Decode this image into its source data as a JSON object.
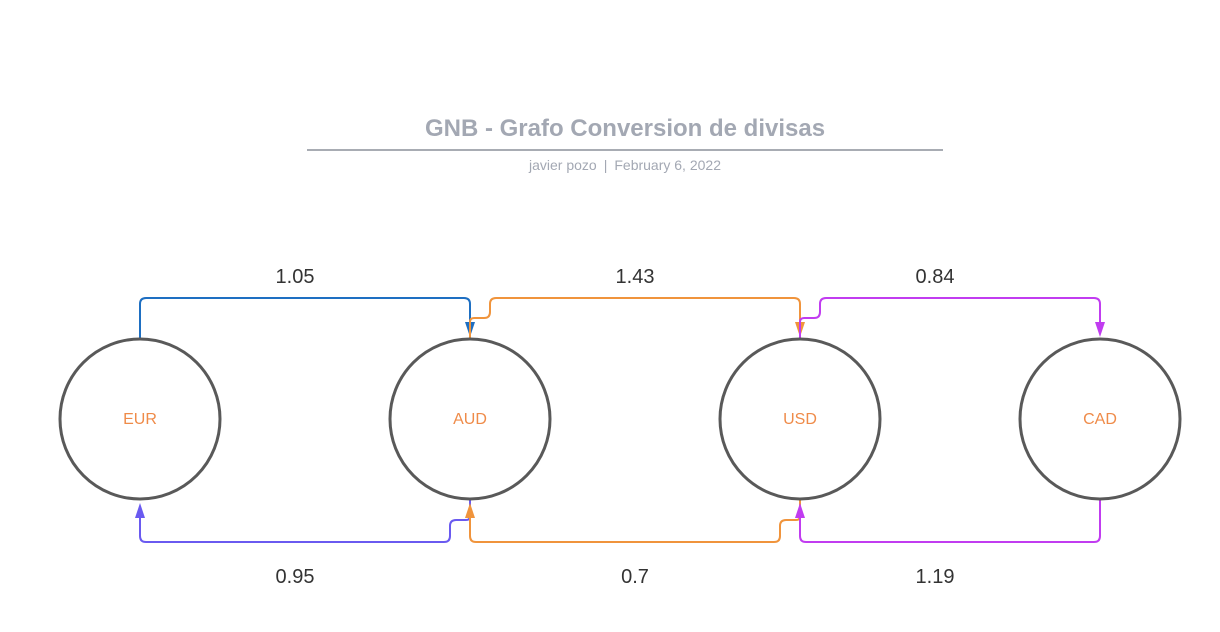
{
  "header": {
    "title": "GNB - Grafo Conversion de divisas",
    "author": "javier pozo",
    "separator": "|",
    "date": "February 6, 2022"
  },
  "nodes": {
    "eur": "EUR",
    "aud": "AUD",
    "usd": "USD",
    "cad": "CAD"
  },
  "edges": {
    "eur_aud": "1.05",
    "aud_usd": "1.43",
    "usd_cad": "0.84",
    "aud_eur": "0.95",
    "usd_aud": "0.7",
    "cad_usd": "1.19"
  },
  "colors": {
    "eur_aud": "#1e6fc2",
    "aud_usd": "#f0943c",
    "usd_cad": "#c13cf0",
    "aud_eur": "#6a5af0",
    "usd_aud": "#f0943c",
    "cad_usd": "#c13cf0",
    "node_stroke": "#595959",
    "node_text": "#ef8b49"
  }
}
